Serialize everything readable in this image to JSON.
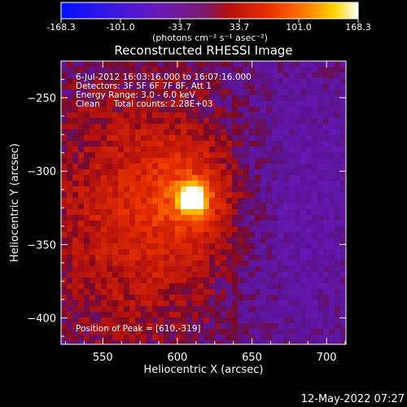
{
  "colorbar": {
    "ticks": [
      "-168.3",
      "-101.0",
      "-33.7",
      "33.7",
      "101.0",
      "168.3"
    ],
    "unit_label": "(photons cm⁻² s⁻¹ asec⁻²)",
    "range": [
      -168.3,
      168.3
    ]
  },
  "chart_data": {
    "type": "heatmap",
    "title": "Reconstructed RHESSI Image",
    "xlabel": "Heliocentric X (arcsec)",
    "ylabel": "Heliocentric Y (arcsec)",
    "xlim": [
      522,
      713
    ],
    "ylim": [
      -418,
      -225
    ],
    "xticks": [
      550,
      600,
      650,
      700
    ],
    "yticks": [
      -250,
      -300,
      -350,
      -400
    ],
    "xtick_labels": [
      "550",
      "600",
      "650",
      "700"
    ],
    "ytick_labels": [
      "−250",
      "−300",
      "−350",
      "−400"
    ],
    "zrange": [
      -168.3,
      168.3
    ],
    "peak": {
      "x": 610,
      "y": -319,
      "value": 168.3
    },
    "annotations": {
      "line1": "6-Jul-2012 16:03:16.000 to 16:07:16.000",
      "line2": "Detectors: 3F 5F 6F 7F 8F, Att 1",
      "line3": "Energy Range: 3.0 - 6.0 keV",
      "line4": "Clean     Total counts: 2.28E+03",
      "peak_text": "Position of Peak = [610,-319]"
    },
    "colormap": "rainbow-purple-red-yellow-white"
  },
  "footer": {
    "timestamp": "12-May-2022 07:27"
  },
  "colors": {
    "background": "#000000",
    "axis": "#ffffff"
  }
}
